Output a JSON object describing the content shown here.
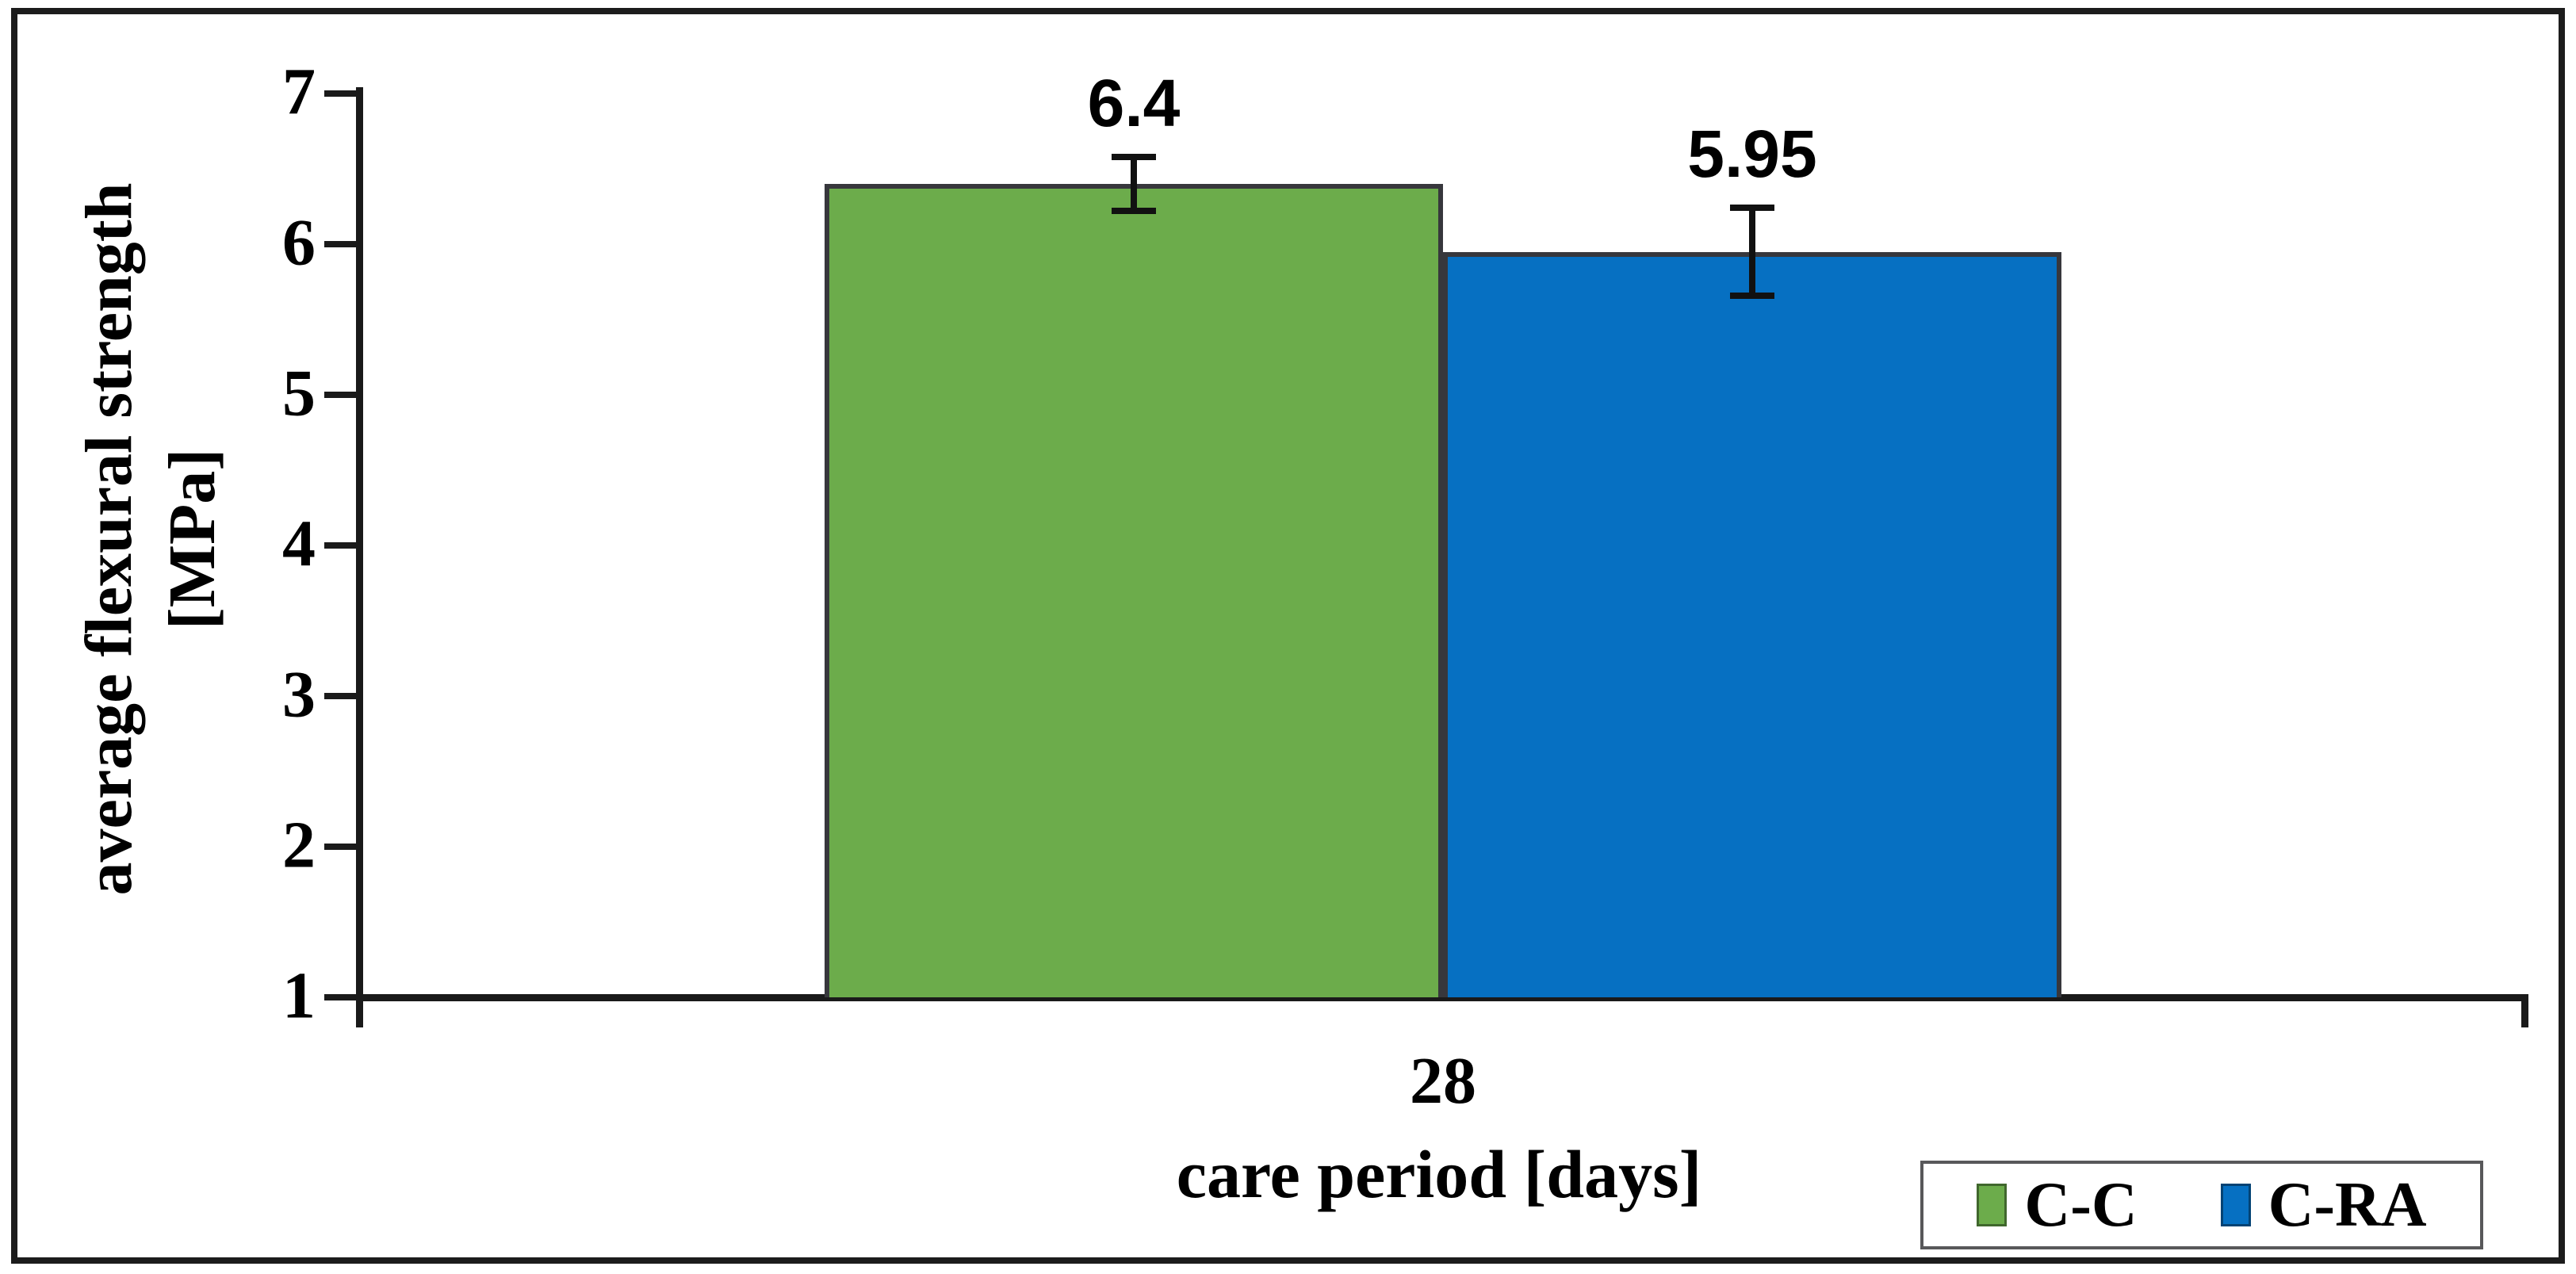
{
  "chart_data": {
    "type": "bar",
    "categories": [
      "28"
    ],
    "series": [
      {
        "name": "C-C",
        "values": [
          6.4
        ],
        "data_labels": [
          "6.4"
        ],
        "color": "#6CAC4B",
        "error": 0.18
      },
      {
        "name": "C-RA",
        "values": [
          5.95
        ],
        "data_labels": [
          "5.95"
        ],
        "color": "#0670C2",
        "error": 0.29
      }
    ],
    "xlabel": "care period [days]",
    "ylabel": "average flexural strength [MPa]",
    "ylabel_line1": "average flexural strength",
    "ylabel_line2": "[MPa]",
    "ylim": [
      1,
      7
    ],
    "y_ticks": [
      7,
      6,
      5,
      4,
      3,
      2,
      1
    ],
    "grid": false,
    "error_bars": true,
    "legend_position": "bottom-right"
  },
  "colors": {
    "background": "#ffffff",
    "frame_border": "#1c1c1c",
    "axis": "#1a1a1a",
    "bar_border": "#37373c",
    "legend_border": "#58585a",
    "bar_cc": "#6CAC4B",
    "bar_cra": "#0670C2"
  }
}
